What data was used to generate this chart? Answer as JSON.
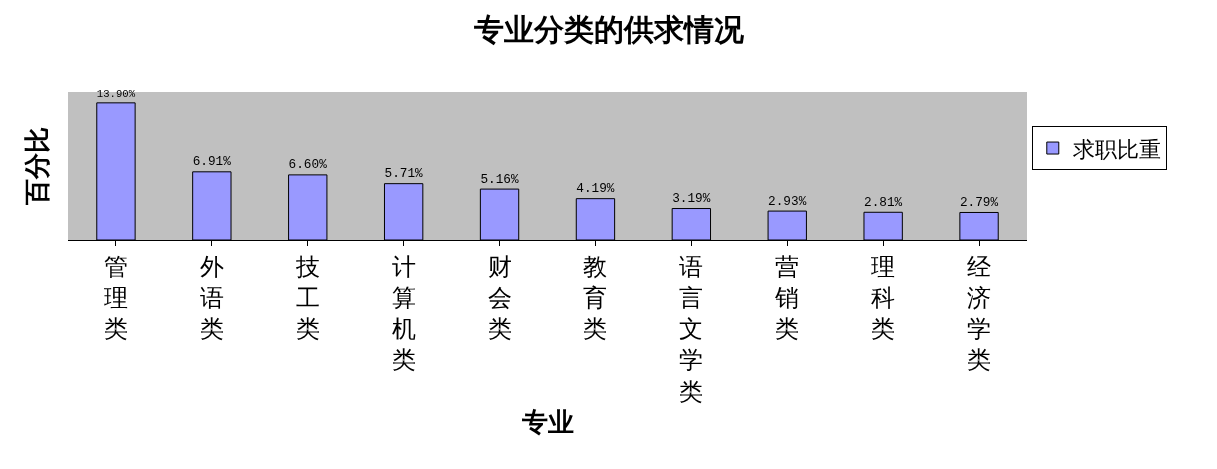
{
  "chart_data": {
    "type": "bar",
    "title": "专业分类的供求情况",
    "xlabel": "专业",
    "ylabel": "百分比",
    "categories": [
      "管理类",
      "外语类",
      "技工类",
      "计算机类",
      "财会类",
      "教育类",
      "语言文学类",
      "营销类",
      "理科类",
      "经济学类"
    ],
    "series": [
      {
        "name": "求职比重",
        "color": "#9999ff",
        "values": [
          13.9,
          6.91,
          6.6,
          5.71,
          5.16,
          4.19,
          3.19,
          2.93,
          2.81,
          2.79
        ],
        "value_labels": [
          "13.90%",
          "6.91%",
          "6.60%",
          "5.71%",
          "5.16%",
          "4.19%",
          "3.19%",
          "2.93%",
          "2.81%",
          "2.79%"
        ]
      }
    ],
    "ylim": [
      0,
      15
    ],
    "tick_labels": "x",
    "grid": false,
    "legend": "right"
  }
}
